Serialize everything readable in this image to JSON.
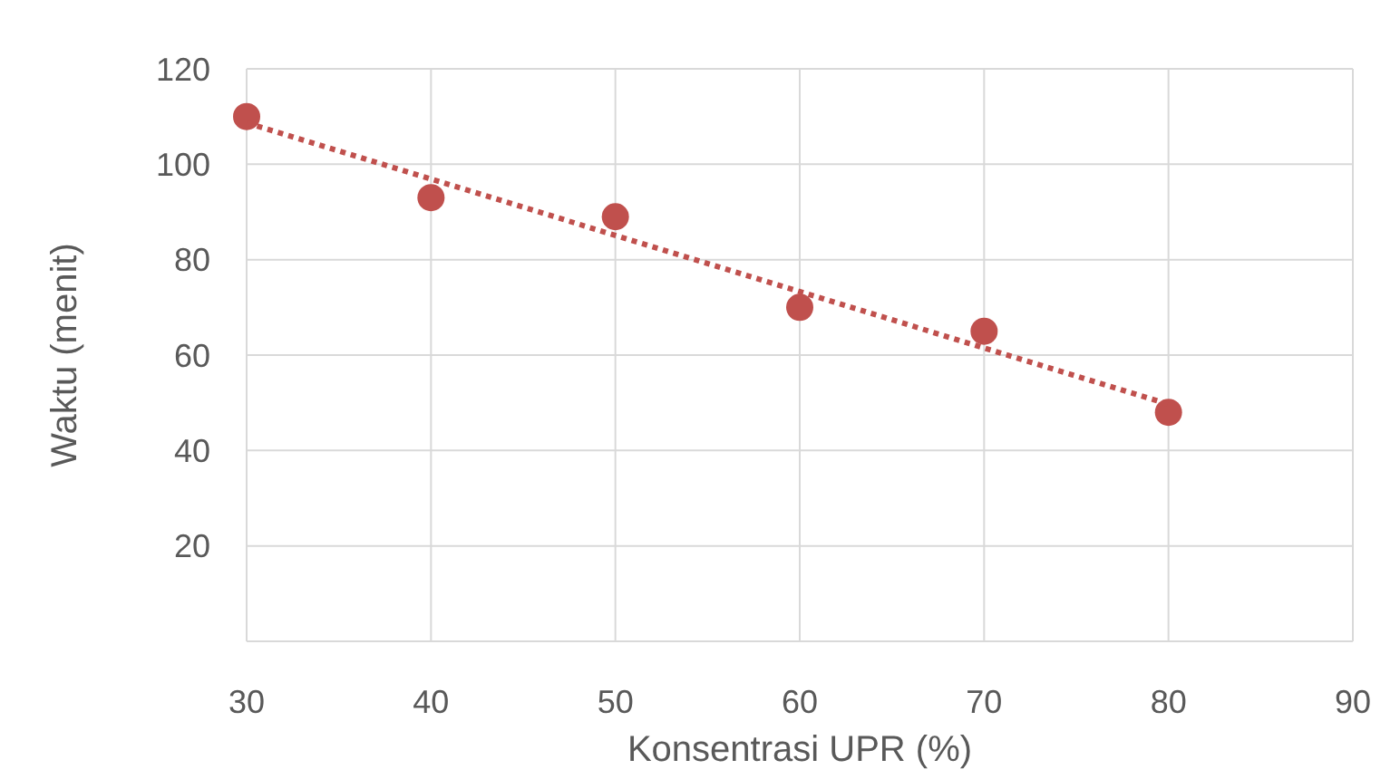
{
  "chart_data": {
    "type": "scatter",
    "xlabel": "Konsentrasi UPR (%)",
    "ylabel": "Waktu (menit)",
    "x": [
      30,
      40,
      50,
      60,
      70,
      80
    ],
    "series": [
      {
        "color": "#c0504d",
        "marker": "circle",
        "values": [
          110,
          93,
          89,
          70,
          65,
          48
        ]
      },
      {
        "type": "line",
        "color": "#c0504d",
        "marker": "none",
        "line_style": "dotted",
        "x": [
          30,
          80
        ],
        "values": [
          108.7,
          49.7
        ]
      }
    ],
    "xlim": [
      30,
      90
    ],
    "xticks": [
      30,
      40,
      50,
      60,
      70,
      80,
      90
    ],
    "ylim": [
      0,
      120
    ],
    "yticks": [
      {
        "value": 0,
        "label": null
      },
      20,
      40,
      60,
      80,
      100,
      120
    ],
    "grid": true
  }
}
